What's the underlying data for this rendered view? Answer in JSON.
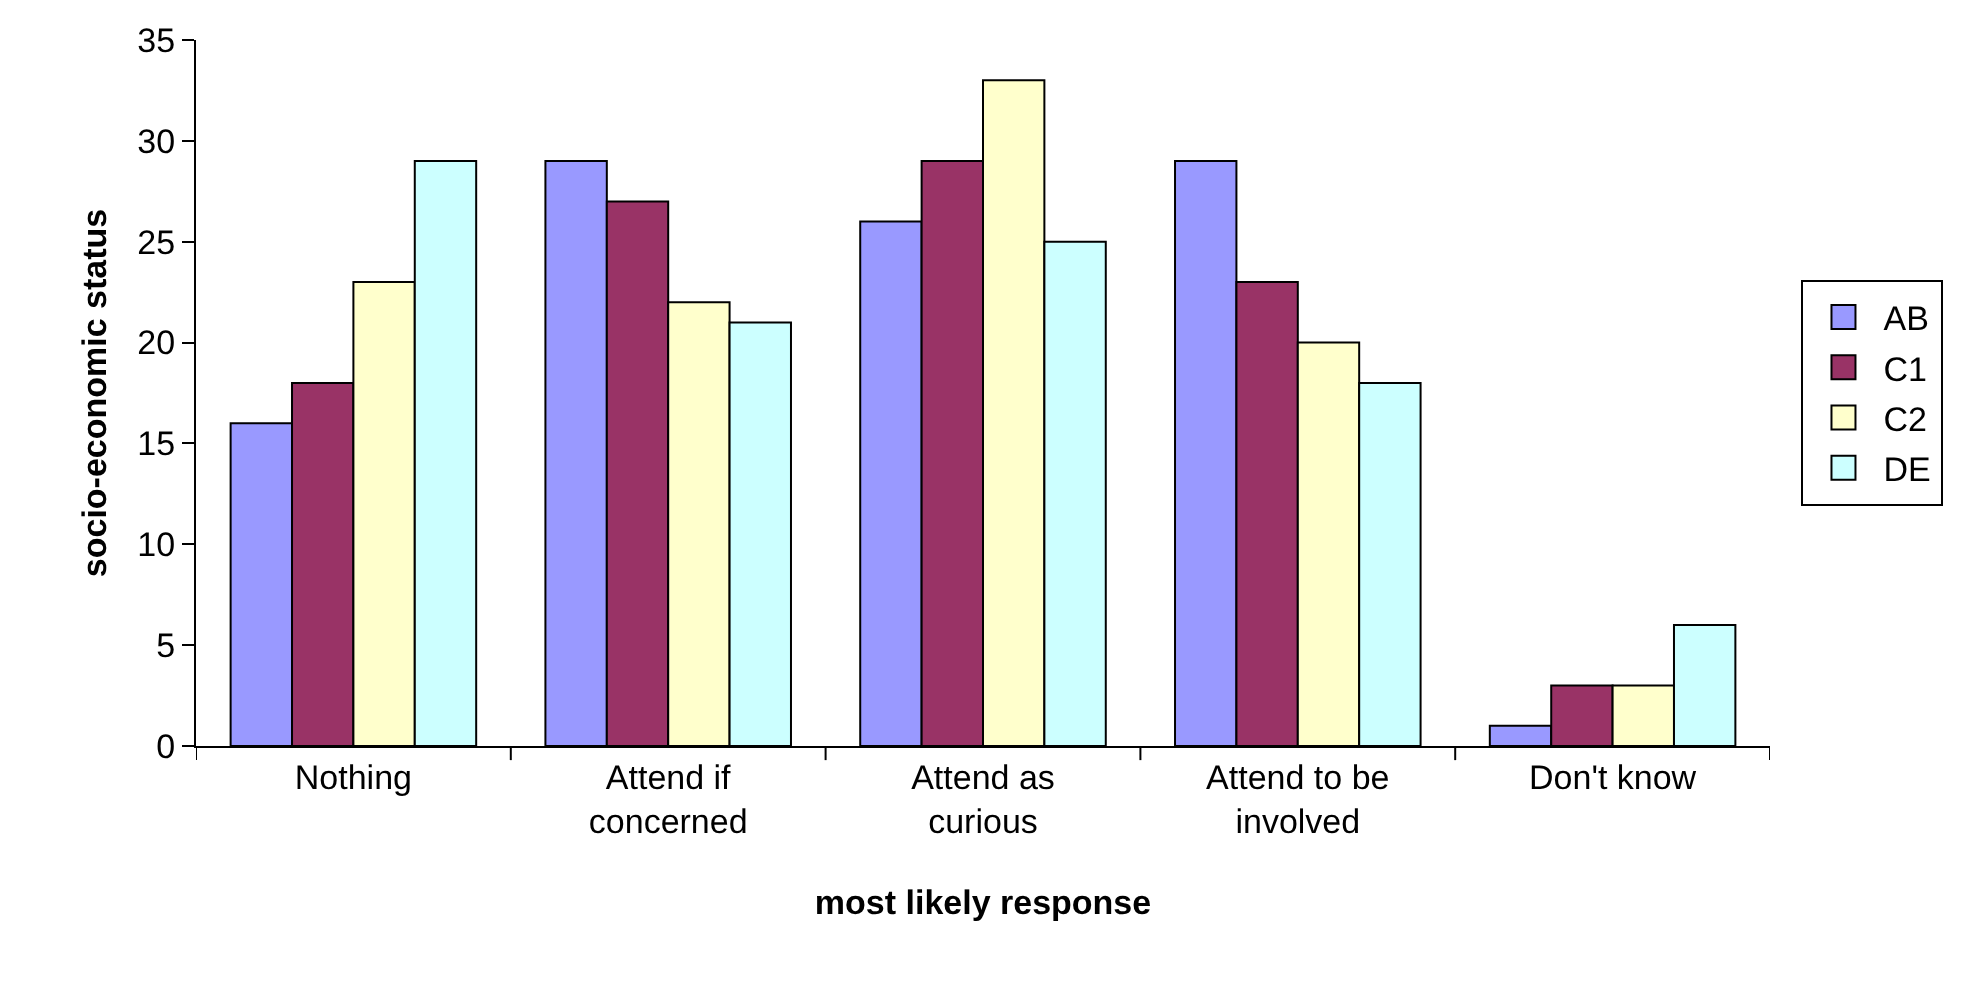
{
  "chart_data": {
    "type": "bar",
    "xlabel": "most likely response",
    "ylabel": "socio-economic status",
    "categories": [
      "Nothing",
      "Attend if concerned",
      "Attend as curious",
      "Attend to be involved",
      "Don't know"
    ],
    "series": [
      {
        "name": "AB",
        "color": "#9999ff",
        "values": [
          16,
          29,
          26,
          29,
          1
        ]
      },
      {
        "name": "C1",
        "color": "#993366",
        "values": [
          18,
          27,
          29,
          23,
          3
        ]
      },
      {
        "name": "C2",
        "color": "#ffffcc",
        "values": [
          23,
          22,
          33,
          20,
          3
        ]
      },
      {
        "name": "DE",
        "color": "#ccffff",
        "values": [
          29,
          21,
          25,
          18,
          6
        ]
      }
    ],
    "ylim": [
      0,
      35
    ],
    "yticks": [
      0,
      5,
      10,
      15,
      20,
      25,
      30,
      35
    ],
    "grid": false,
    "legend": "right"
  }
}
